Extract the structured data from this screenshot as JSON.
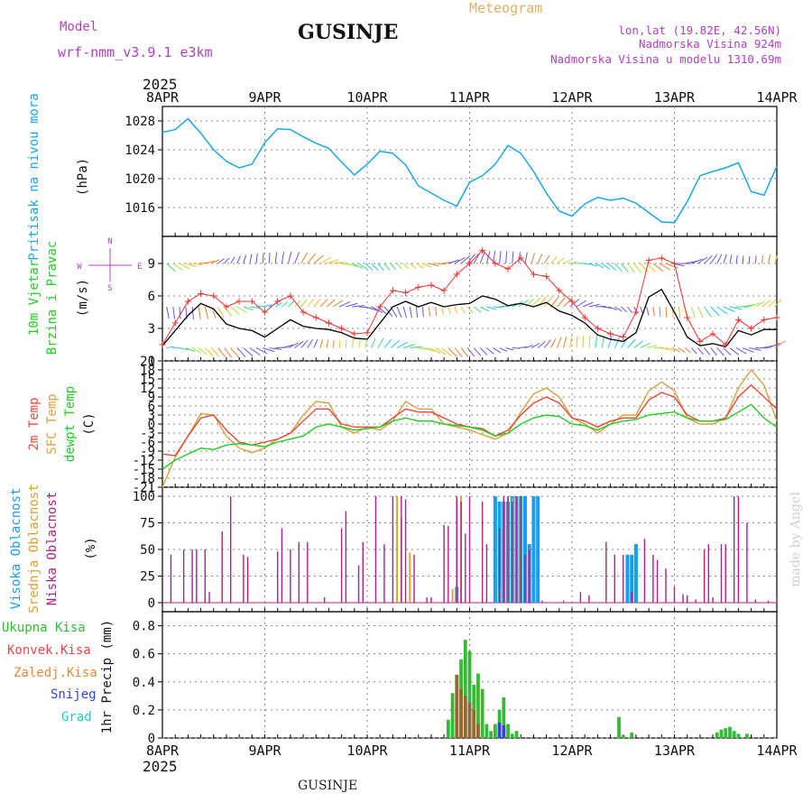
{
  "header": {
    "model_label": "Model",
    "model_name": "wrf-nmm_v3.9.1 e3km",
    "location_title": "GUSINJE",
    "meteogram_label": "Meteogram",
    "lonlat": "lon,lat (19.82E, 42.56N)",
    "altitude": "Nadmorska Visina 924m",
    "model_altitude": "Nadmorska Visina u modelu 1310.69m"
  },
  "footer": {
    "location": "GUSINJE",
    "watermark": "made by Angel"
  },
  "colors": {
    "pressure": "#1aa7e8",
    "wind_speed": "#000000",
    "wind_gust": "#ee3333",
    "temp_2m": "#e84a3a",
    "temp_sfc": "#d9a040",
    "dewpt": "#22cc22",
    "cloud_high": "#1a9ee8",
    "cloud_mid": "#d9a030",
    "cloud_low": "#b0208a",
    "precip_total": "#33bb33",
    "precip_conv": "#ee4444",
    "precip_frozen": "#ee8833",
    "snow": "#3344dd",
    "graupel": "#22cccc",
    "title_purple": "#b040c0",
    "title_orange": "#e0b060"
  },
  "chart_data": [
    {
      "type": "line",
      "id": "pressure",
      "ylabel": "Pritisak na nivou mora",
      "unit_label": "(hPa)",
      "ylim": [
        1012,
        1030
      ],
      "yticks": [
        1016,
        1020,
        1024,
        1028
      ],
      "x_hours": [
        0,
        3,
        6,
        9,
        12,
        15,
        18,
        21,
        24,
        27,
        30,
        33,
        36,
        39,
        42,
        45,
        48,
        51,
        54,
        57,
        60,
        63,
        66,
        69,
        72,
        75,
        78,
        81,
        84,
        87,
        90,
        93,
        96,
        99,
        102,
        105,
        108,
        111,
        114,
        117,
        120,
        123,
        126,
        129,
        132,
        135,
        138,
        141,
        144
      ],
      "values": [
        1026.4,
        1026.8,
        1028.3,
        1026.3,
        1024.0,
        1022.4,
        1021.5,
        1022.0,
        1025.0,
        1026.9,
        1026.8,
        1025.8,
        1024.9,
        1024.2,
        1022.3,
        1020.5,
        1022.0,
        1023.8,
        1023.5,
        1021.9,
        1019.0,
        1018.0,
        1017.0,
        1016.2,
        1019.5,
        1020.4,
        1022.0,
        1024.6,
        1023.5,
        1021.0,
        1018.0,
        1015.5,
        1014.8,
        1016.5,
        1017.4,
        1017.0,
        1017.3,
        1016.6,
        1015.3,
        1014.0,
        1013.9,
        1016.8,
        1020.4,
        1021.0,
        1021.5,
        1022.2,
        1018.2,
        1017.7,
        1021.7
      ]
    },
    {
      "type": "line",
      "id": "wind",
      "ylabel": "10m Vjetar",
      "ylabel2": "Brzina i Pravac",
      "unit_label": "(m/s)",
      "compass": {
        "n": "N",
        "s": "S",
        "e": "E",
        "w": "W"
      },
      "ylim": [
        0,
        11.5
      ],
      "yticks": [
        0,
        3,
        6,
        9
      ],
      "x_hours": [
        0,
        3,
        6,
        9,
        12,
        15,
        18,
        21,
        24,
        27,
        30,
        33,
        36,
        39,
        42,
        45,
        48,
        51,
        54,
        57,
        60,
        63,
        66,
        69,
        72,
        75,
        78,
        81,
        84,
        87,
        90,
        93,
        96,
        99,
        102,
        105,
        108,
        111,
        114,
        117,
        120,
        123,
        126,
        129,
        132,
        135,
        138,
        141,
        144
      ],
      "speed": [
        1.4,
        2.8,
        4.2,
        5.3,
        4.8,
        3.4,
        3.0,
        2.8,
        2.2,
        3.0,
        3.8,
        3.2,
        3.0,
        2.9,
        2.6,
        2.1,
        2.0,
        3.5,
        5.0,
        5.5,
        5.0,
        5.4,
        5.0,
        5.2,
        5.3,
        6.0,
        5.7,
        5.1,
        5.3,
        5.0,
        5.4,
        4.6,
        4.2,
        3.5,
        2.4,
        2.0,
        1.8,
        2.6,
        5.9,
        6.6,
        4.5,
        2.2,
        1.4,
        1.6,
        1.3,
        2.8,
        2.4,
        2.9,
        2.9
      ],
      "gust": [
        1.5,
        3.5,
        5.5,
        6.2,
        6.0,
        5.0,
        5.5,
        5.5,
        4.5,
        5.5,
        6.0,
        4.5,
        4.0,
        3.5,
        3.0,
        2.5,
        2.6,
        5.0,
        6.5,
        6.3,
        6.8,
        7.0,
        6.5,
        8.0,
        9.0,
        10.2,
        9.0,
        8.5,
        9.5,
        8.0,
        7.8,
        6.5,
        5.5,
        4.0,
        3.0,
        2.5,
        2.2,
        4.5,
        9.3,
        9.5,
        9.0,
        4.0,
        1.8,
        2.5,
        1.5,
        3.8,
        3.0,
        3.8,
        4.0
      ]
    },
    {
      "type": "line",
      "id": "temperature",
      "ylabel": "2m Temp",
      "ylabel2": "SFC Temp",
      "ylabel3": "dewpt Temp",
      "unit_label": "(C)",
      "ylim": [
        -21,
        21
      ],
      "yticks": [
        -21,
        -18,
        -15,
        -12,
        -9,
        -6,
        -3,
        0,
        3,
        6,
        9,
        12,
        15,
        18,
        21
      ],
      "x_hours": [
        0,
        3,
        6,
        9,
        12,
        15,
        18,
        21,
        24,
        27,
        30,
        33,
        36,
        39,
        42,
        45,
        48,
        51,
        54,
        57,
        60,
        63,
        66,
        69,
        72,
        75,
        78,
        81,
        84,
        87,
        90,
        93,
        96,
        99,
        102,
        105,
        108,
        111,
        114,
        117,
        120,
        123,
        126,
        129,
        132,
        135,
        138,
        141,
        144
      ],
      "temp_2m": [
        -10.0,
        -10.5,
        -4.0,
        2.0,
        3.0,
        -2.0,
        -6.0,
        -7.0,
        -6.0,
        -5.0,
        -3.0,
        1.0,
        5.0,
        5.0,
        0.0,
        -1.0,
        -1.0,
        -1.0,
        2.0,
        5.0,
        4.0,
        4.0,
        2.0,
        0.0,
        -1.0,
        -1.5,
        -4.0,
        -2.0,
        3.0,
        7.0,
        9.0,
        7.0,
        2.0,
        1.0,
        -1.0,
        1.0,
        2.0,
        2.0,
        8.0,
        10.5,
        9.0,
        3.0,
        1.0,
        1.0,
        2.0,
        9.0,
        13.0,
        9.0,
        5.0
      ],
      "temp_sfc": [
        -21.0,
        -11.0,
        -4.0,
        3.5,
        3.0,
        -4.0,
        -8.0,
        -9.5,
        -8.0,
        -5.0,
        -3.0,
        3.0,
        7.5,
        7.0,
        -1.0,
        -3.0,
        -1.0,
        -2.0,
        1.0,
        7.5,
        5.0,
        5.0,
        0.0,
        -1.0,
        -2.0,
        -3.5,
        -5.0,
        -3.0,
        4.0,
        10.0,
        12.0,
        9.0,
        2.0,
        0.0,
        -3.0,
        0.0,
        3.0,
        3.0,
        11.0,
        14.0,
        11.0,
        2.0,
        0.0,
        0.0,
        2.0,
        12.0,
        18.0,
        13.0,
        1.0
      ],
      "dewpt": [
        -15.0,
        -12.0,
        -10.0,
        -8.0,
        -8.5,
        -7.0,
        -6.5,
        -7.0,
        -7.5,
        -6.0,
        -5.0,
        -4.0,
        -1.0,
        0.0,
        -1.0,
        -2.0,
        -1.5,
        -1.0,
        1.0,
        2.0,
        1.0,
        1.0,
        0.0,
        -0.5,
        -1.0,
        -2.0,
        -4.0,
        -3.0,
        0.0,
        2.0,
        3.0,
        2.5,
        0.0,
        -0.5,
        -2.0,
        0.0,
        1.0,
        1.5,
        3.0,
        3.5,
        4.0,
        2.0,
        1.0,
        1.0,
        1.5,
        4.0,
        6.5,
        2.0,
        -1.0
      ]
    },
    {
      "type": "bar",
      "id": "clouds",
      "ylabel": "Visoka Oblacnost",
      "ylabel2": "Srednja Oblacnost",
      "ylabel3": "Niska Oblacnost",
      "unit_label": "(%)",
      "ylim": [
        0,
        100
      ],
      "yticks": [
        0,
        25,
        50,
        75,
        100
      ],
      "low": [
        [
          2,
          45
        ],
        [
          5,
          50
        ],
        [
          7,
          50
        ],
        [
          8,
          50
        ],
        [
          10,
          50
        ],
        [
          11,
          10
        ],
        [
          14,
          67
        ],
        [
          16,
          100
        ],
        [
          19,
          45
        ],
        [
          20,
          43
        ],
        [
          27,
          48
        ],
        [
          28,
          70
        ],
        [
          30,
          50
        ],
        [
          32,
          57
        ],
        [
          34,
          57
        ],
        [
          38,
          5
        ],
        [
          42,
          70
        ],
        [
          43,
          86
        ],
        [
          46,
          35
        ],
        [
          47,
          57
        ],
        [
          50,
          100
        ],
        [
          52,
          55
        ],
        [
          54,
          100
        ],
        [
          56,
          100
        ],
        [
          57,
          97
        ],
        [
          59,
          45
        ],
        [
          62,
          5
        ],
        [
          63,
          5
        ],
        [
          66,
          73
        ],
        [
          67,
          72
        ],
        [
          69,
          100
        ],
        [
          70,
          95
        ],
        [
          71,
          65
        ],
        [
          72,
          100
        ],
        [
          75,
          95
        ],
        [
          76,
          55
        ],
        [
          79,
          70
        ],
        [
          80,
          100
        ],
        [
          81,
          100
        ],
        [
          82,
          95
        ],
        [
          83,
          100
        ],
        [
          84,
          100
        ],
        [
          85,
          45
        ],
        [
          86,
          50
        ],
        [
          89,
          2
        ],
        [
          94,
          2
        ],
        [
          98,
          10
        ],
        [
          100,
          7
        ],
        [
          104,
          57
        ],
        [
          106,
          45
        ],
        [
          108,
          45
        ],
        [
          110,
          10
        ],
        [
          113,
          60
        ],
        [
          115,
          45
        ],
        [
          116,
          40
        ],
        [
          118,
          32
        ],
        [
          120,
          15
        ],
        [
          122,
          8
        ],
        [
          123,
          7
        ],
        [
          125,
          3
        ],
        [
          127,
          50
        ],
        [
          128,
          55
        ],
        [
          129,
          5
        ],
        [
          131,
          55
        ],
        [
          132,
          55
        ],
        [
          134,
          100
        ],
        [
          135,
          100
        ],
        [
          137,
          75
        ],
        [
          139,
          3
        ],
        [
          142,
          2
        ],
        [
          144,
          5
        ]
      ],
      "mid": [
        [
          55,
          100
        ],
        [
          56,
          80
        ],
        [
          58,
          47
        ],
        [
          68,
          13
        ],
        [
          69,
          97
        ],
        [
          70,
          100
        ],
        [
          79,
          13
        ],
        [
          81,
          100
        ],
        [
          82,
          98
        ],
        [
          83,
          100
        ],
        [
          84,
          98
        ]
      ],
      "high": [
        [
          69,
          15
        ],
        [
          78,
          100
        ],
        [
          79,
          95
        ],
        [
          80,
          95
        ],
        [
          81,
          95
        ],
        [
          82,
          100
        ],
        [
          83,
          100
        ],
        [
          84,
          100
        ],
        [
          85,
          100
        ],
        [
          86,
          55
        ],
        [
          87,
          100
        ],
        [
          88,
          100
        ],
        [
          109,
          45
        ],
        [
          110,
          45
        ],
        [
          111,
          55
        ]
      ]
    },
    {
      "type": "bar",
      "id": "precipitation",
      "ylabel": "1hr Precip",
      "unit_label": "(mm)",
      "ylim": [
        0,
        0.9
      ],
      "yticks": [
        0,
        0.2,
        0.4,
        0.6,
        0.8
      ],
      "legend": [
        "Ukupna Kisa",
        "Konvek.Kisa",
        "Zaledj.Kisa",
        "Snijeg",
        "Grad"
      ],
      "rain": [
        [
          67,
          0.13
        ],
        [
          68,
          0.32
        ],
        [
          69,
          0.45
        ],
        [
          70,
          0.56
        ],
        [
          71,
          0.7
        ],
        [
          72,
          0.62
        ],
        [
          73,
          0.38
        ],
        [
          74,
          0.46
        ],
        [
          75,
          0.35
        ],
        [
          76,
          0.1
        ],
        [
          77,
          0.05
        ],
        [
          78,
          0.1
        ],
        [
          79,
          0.2
        ],
        [
          80,
          0.29
        ],
        [
          81,
          0.1
        ],
        [
          82,
          0.03
        ],
        [
          83,
          0.05
        ],
        [
          107,
          0.15
        ],
        [
          108,
          0.02
        ],
        [
          110,
          0.04
        ],
        [
          130,
          0.04
        ],
        [
          131,
          0.06
        ],
        [
          132,
          0.07
        ],
        [
          133,
          0.08
        ],
        [
          134,
          0.05
        ],
        [
          135,
          0.03
        ],
        [
          137,
          0.03
        ]
      ],
      "conv": [
        [
          69,
          0.45
        ],
        [
          70,
          0.35
        ],
        [
          71,
          0.3
        ],
        [
          72,
          0.25
        ],
        [
          73,
          0.2
        ],
        [
          74,
          0.1
        ],
        [
          79,
          0.05
        ]
      ],
      "snow": [
        [
          79,
          0.11
        ],
        [
          80,
          0.09
        ]
      ]
    }
  ],
  "time_axis": {
    "year": "2025",
    "labels": [
      "8APR",
      "9APR",
      "10APR",
      "11APR",
      "12APR",
      "13APR",
      "14APR"
    ],
    "hours": [
      0,
      24,
      48,
      72,
      96,
      120,
      144
    ]
  }
}
